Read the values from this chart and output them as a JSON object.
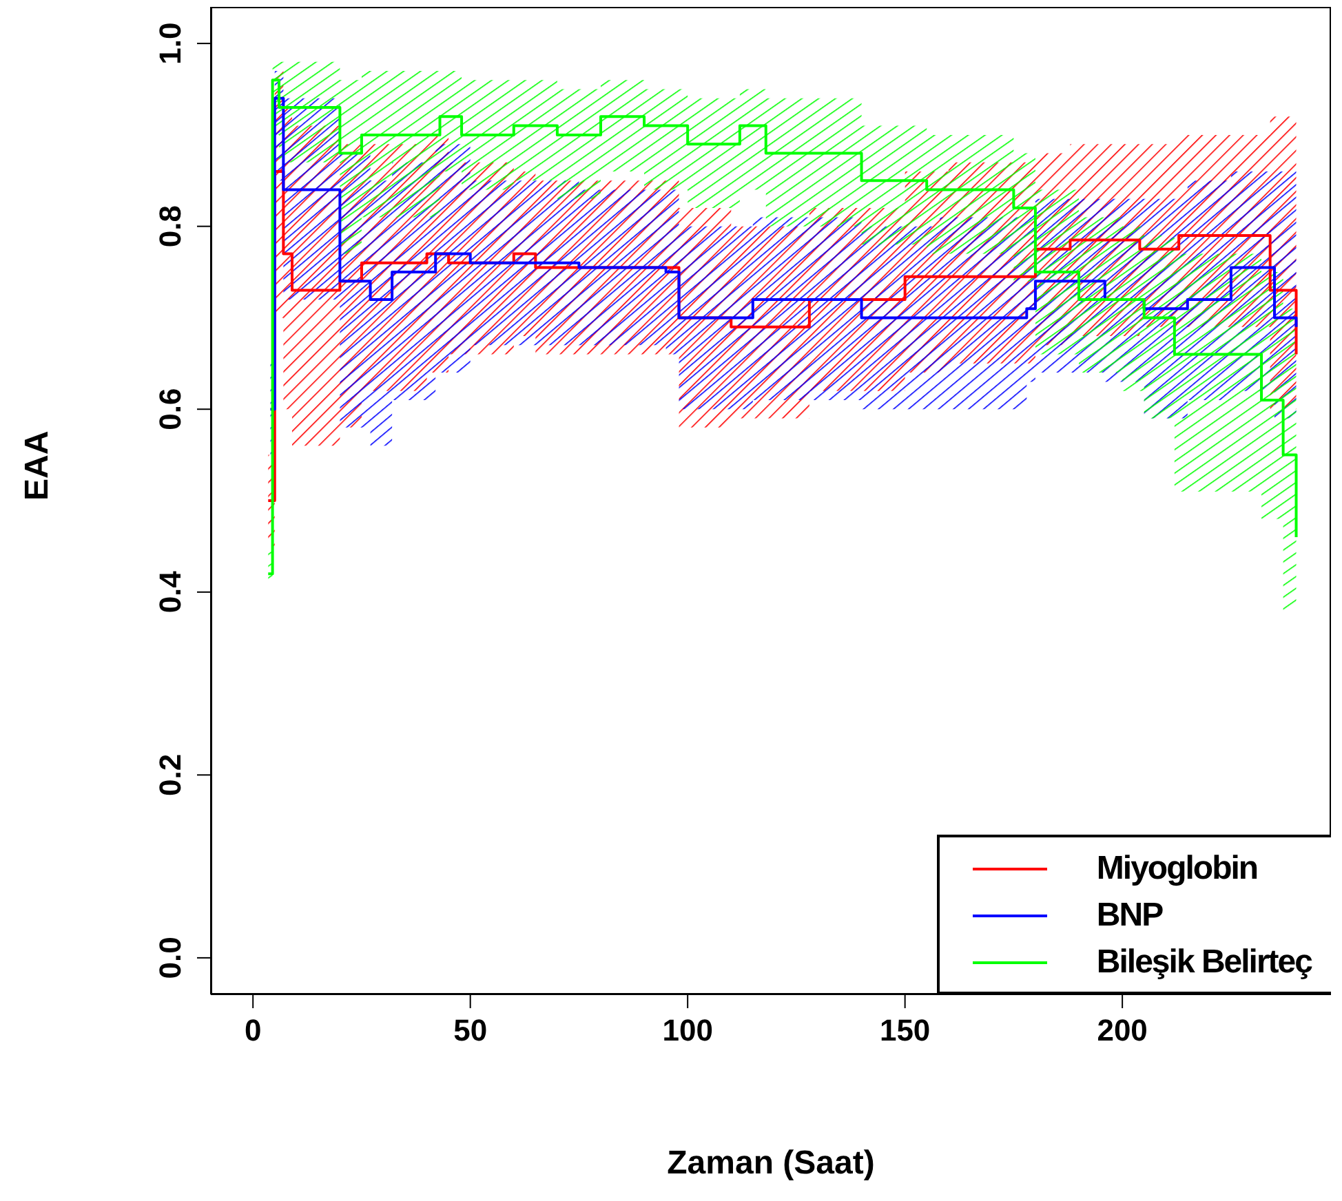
{
  "chart_data": {
    "type": "step",
    "xlabel": "Zaman (Saat)",
    "ylabel": "EAA",
    "xlim": [
      -9.7,
      248
    ],
    "ylim": [
      -0.04,
      1.04
    ],
    "xticks": [
      0,
      50,
      100,
      150,
      200
    ],
    "yticks": [
      {
        "value": 0,
        "label": "0.0"
      },
      0.2,
      0.4,
      0.6,
      0.8,
      {
        "value": 1,
        "label": "1.0"
      }
    ],
    "legend": "bottom right",
    "grid": false,
    "series": [
      {
        "name": "Miyoglobin",
        "color": "#ff0000",
        "x": [
          3.5,
          5,
          7,
          9,
          20,
          25,
          40,
          45,
          60,
          65,
          95,
          98,
          110,
          128,
          150,
          160,
          180,
          188,
          204,
          213,
          234,
          240
        ],
        "values": [
          0.5,
          0.86,
          0.77,
          0.73,
          0.74,
          0.76,
          0.77,
          0.76,
          0.77,
          0.755,
          0.755,
          0.7,
          0.69,
          0.72,
          0.745,
          0.745,
          0.775,
          0.785,
          0.775,
          0.79,
          0.73,
          0.66
        ],
        "lower": [
          0.45,
          0.7,
          0.6,
          0.56,
          0.58,
          0.62,
          0.64,
          0.66,
          0.68,
          0.66,
          0.66,
          0.58,
          0.59,
          0.62,
          0.64,
          0.65,
          0.67,
          0.68,
          0.69,
          0.69,
          0.6,
          0.57
        ],
        "upper": [
          0.55,
          0.97,
          0.93,
          0.91,
          0.89,
          0.89,
          0.9,
          0.87,
          0.86,
          0.85,
          0.85,
          0.82,
          0.8,
          0.82,
          0.86,
          0.87,
          0.88,
          0.89,
          0.89,
          0.9,
          0.92,
          0.9
        ]
      },
      {
        "name": "BNP",
        "color": "#0000ff",
        "x": [
          4,
          5,
          7,
          20,
          27,
          32,
          42,
          50,
          75,
          95,
          98,
          115,
          140,
          158,
          178,
          180,
          196,
          205,
          215,
          225,
          235,
          240
        ],
        "values": [
          0.6,
          0.94,
          0.84,
          0.74,
          0.72,
          0.75,
          0.77,
          0.76,
          0.755,
          0.75,
          0.7,
          0.72,
          0.7,
          0.7,
          0.71,
          0.74,
          0.72,
          0.71,
          0.72,
          0.755,
          0.7,
          0.69
        ],
        "lower": [
          0.55,
          0.85,
          0.72,
          0.58,
          0.56,
          0.61,
          0.64,
          0.67,
          0.67,
          0.66,
          0.6,
          0.61,
          0.6,
          0.6,
          0.63,
          0.64,
          0.63,
          0.59,
          0.61,
          0.62,
          0.59,
          0.58
        ],
        "upper": [
          0.65,
          0.97,
          0.94,
          0.88,
          0.85,
          0.87,
          0.89,
          0.85,
          0.84,
          0.84,
          0.8,
          0.81,
          0.8,
          0.81,
          0.82,
          0.83,
          0.83,
          0.83,
          0.85,
          0.86,
          0.86,
          0.86
        ]
      },
      {
        "name": "Bileşik Belirteç",
        "color": "#00ff00",
        "x": [
          3.5,
          4.5,
          6,
          20,
          25,
          43,
          48,
          60,
          70,
          80,
          90,
          100,
          112,
          118,
          140,
          155,
          175,
          180,
          190,
          200,
          205,
          212,
          232,
          237,
          240
        ],
        "values": [
          0.42,
          0.96,
          0.93,
          0.88,
          0.9,
          0.92,
          0.9,
          0.91,
          0.9,
          0.92,
          0.91,
          0.89,
          0.91,
          0.88,
          0.85,
          0.84,
          0.82,
          0.75,
          0.72,
          0.72,
          0.7,
          0.66,
          0.61,
          0.55,
          0.46
        ],
        "lower": [
          0.41,
          0.9,
          0.87,
          0.77,
          0.81,
          0.86,
          0.84,
          0.85,
          0.83,
          0.86,
          0.84,
          0.82,
          0.84,
          0.8,
          0.78,
          0.77,
          0.74,
          0.66,
          0.64,
          0.62,
          0.59,
          0.51,
          0.48,
          0.38,
          0.31
        ],
        "upper": [
          0.45,
          0.98,
          0.98,
          0.96,
          0.97,
          0.97,
          0.96,
          0.96,
          0.95,
          0.96,
          0.95,
          0.94,
          0.95,
          0.94,
          0.91,
          0.9,
          0.88,
          0.84,
          0.81,
          0.8,
          0.79,
          0.77,
          0.75,
          0.71,
          0.69
        ]
      }
    ]
  }
}
